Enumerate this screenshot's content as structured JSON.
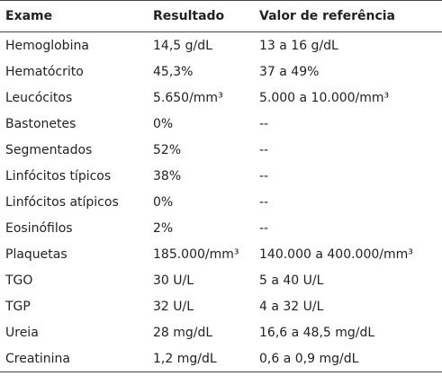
{
  "table": {
    "header": [
      "Exame",
      "Resultado",
      "Valor de referência"
    ],
    "rows": [
      [
        "Hemoglobina",
        "14,5 g/dL",
        "13 a 16 g/dL"
      ],
      [
        "Hematócrito",
        "45,3%",
        "37 a 49%"
      ],
      [
        "Leucócitos",
        "5.650/mm³",
        "5.000 a 10.000/mm³"
      ],
      [
        "Bastonetes",
        "0%",
        "--"
      ],
      [
        "Segmentados",
        "52%",
        "--"
      ],
      [
        "Linfócitos típicos",
        "38%",
        "--"
      ],
      [
        "Linfócitos atípicos",
        "0%",
        "--"
      ],
      [
        "Eosinófilos",
        "2%",
        "--"
      ],
      [
        "Plaquetas",
        "185.000/mm³",
        "140.000 a 400.000/mm³"
      ],
      [
        "TGO",
        "30 U/L",
        "5 a 40 U/L"
      ],
      [
        "TGP",
        "32 U/L",
        "4 a 32 U/L"
      ],
      [
        "Ureia",
        "28 mg/dL",
        "16,6 a 48,5 mg/dL"
      ],
      [
        "Creatinina",
        "1,2 mg/dL",
        "0,6 a 0,9 mg/dL"
      ]
    ]
  }
}
